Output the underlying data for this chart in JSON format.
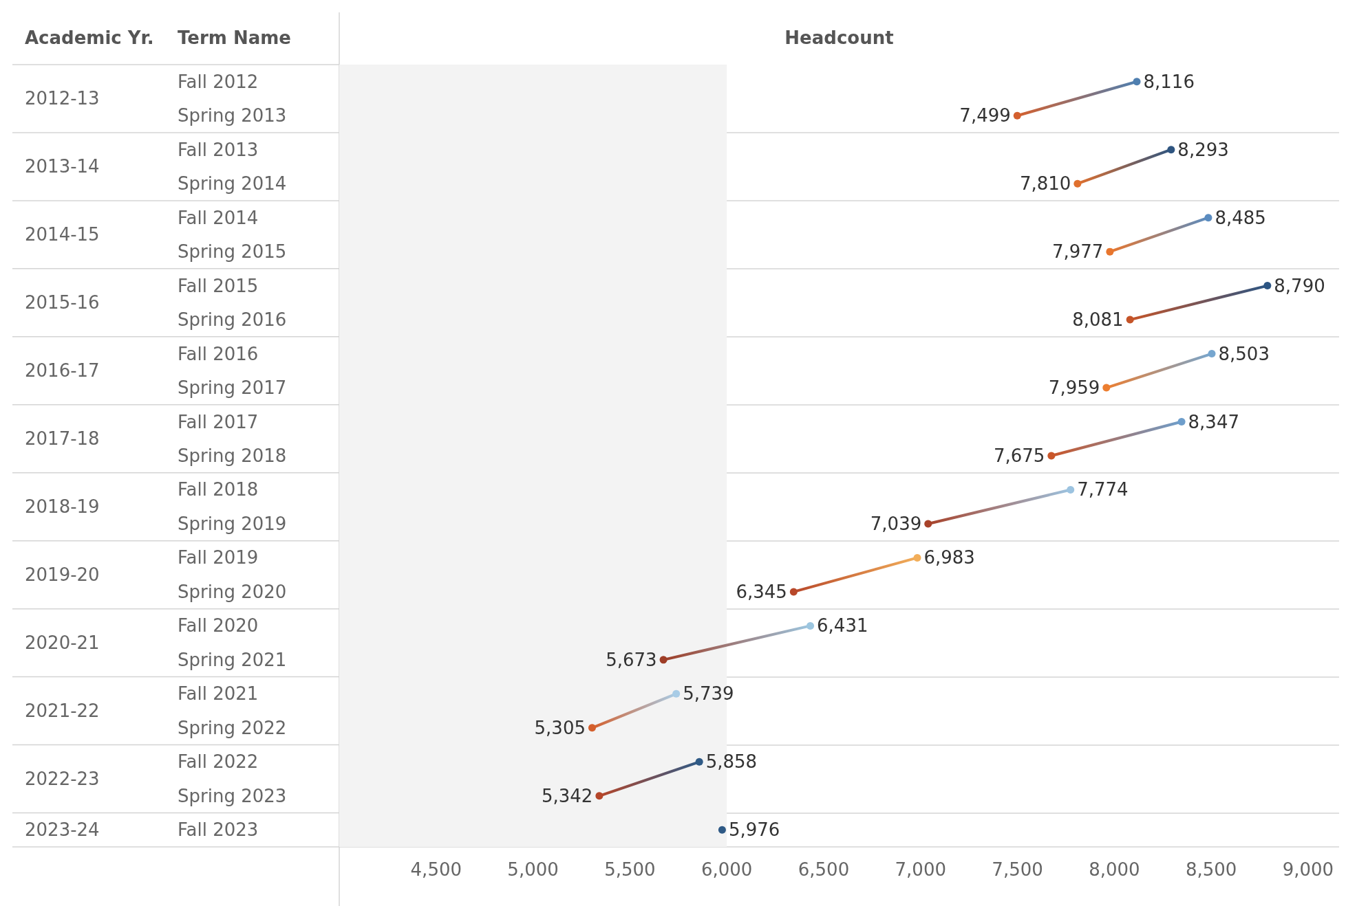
{
  "chart_data": {
    "type": "line",
    "orientation": "horizontal",
    "xlabel": "Headcount",
    "ylabel": "Term Name",
    "legend_title": "Academic Yr.",
    "categories": [
      "Fall 2012",
      "Spring 2013",
      "Fall 2013",
      "Spring 2014",
      "Fall 2014",
      "Spring 2015",
      "Fall 2015",
      "Spring 2016",
      "Fall 2016",
      "Spring 2017",
      "Fall 2017",
      "Spring 2018",
      "Fall 2018",
      "Spring 2019",
      "Fall 2019",
      "Spring 2020",
      "Fall 2020",
      "Spring 2021",
      "Fall 2021",
      "Spring 2022",
      "Fall 2022",
      "Spring 2023",
      "Fall 2023"
    ],
    "annotations": [
      "2012-13",
      "2013-14",
      "2014-15",
      "2015-16",
      "2016-17",
      "2017-18",
      "2018-19",
      "2019-20",
      "2020-21",
      "2021-22",
      "2022-23",
      "2023-24"
    ],
    "series": [
      {
        "values": [
          8116,
          7499,
          null,
          null,
          null,
          null,
          null,
          null,
          null,
          null,
          null,
          null,
          null,
          null,
          null,
          null,
          null,
          null,
          null,
          null,
          null,
          null,
          null
        ],
        "value_labels": [
          "8,116",
          "7,499",
          null,
          null,
          null,
          null,
          null,
          null,
          null,
          null,
          null,
          null,
          null,
          null,
          null,
          null,
          null,
          null,
          null,
          null,
          null,
          null,
          null
        ],
        "colors": [
          "#4f7fb0",
          "#d4602e",
          null,
          null,
          null,
          null,
          null,
          null,
          null,
          null,
          null,
          null,
          null,
          null,
          null,
          null,
          null,
          null,
          null,
          null,
          null,
          null,
          null
        ]
      },
      {
        "values": [
          null,
          null,
          8293,
          7810,
          null,
          null,
          null,
          null,
          null,
          null,
          null,
          null,
          null,
          null,
          null,
          null,
          null,
          null,
          null,
          null,
          null,
          null,
          null
        ],
        "value_labels": [
          null,
          null,
          "8,293",
          "7,810",
          null,
          null,
          null,
          null,
          null,
          null,
          null,
          null,
          null,
          null,
          null,
          null,
          null,
          null,
          null,
          null,
          null,
          null,
          null
        ],
        "colors": [
          null,
          null,
          "#2f5580",
          "#e0702e",
          null,
          null,
          null,
          null,
          null,
          null,
          null,
          null,
          null,
          null,
          null,
          null,
          null,
          null,
          null,
          null,
          null,
          null,
          null
        ]
      },
      {
        "values": [
          null,
          null,
          null,
          null,
          8485,
          7977,
          null,
          null,
          null,
          null,
          null,
          null,
          null,
          null,
          null,
          null,
          null,
          null,
          null,
          null,
          null,
          null,
          null
        ],
        "value_labels": [
          null,
          null,
          null,
          null,
          "8,485",
          "7,977",
          null,
          null,
          null,
          null,
          null,
          null,
          null,
          null,
          null,
          null,
          null,
          null,
          null,
          null,
          null,
          null,
          null
        ],
        "colors": [
          null,
          null,
          null,
          null,
          "#5a8cc0",
          "#e8762e",
          null,
          null,
          null,
          null,
          null,
          null,
          null,
          null,
          null,
          null,
          null,
          null,
          null,
          null,
          null,
          null,
          null
        ]
      },
      {
        "values": [
          null,
          null,
          null,
          null,
          null,
          null,
          8790,
          8081,
          null,
          null,
          null,
          null,
          null,
          null,
          null,
          null,
          null,
          null,
          null,
          null,
          null,
          null,
          null
        ],
        "value_labels": [
          null,
          null,
          null,
          null,
          null,
          null,
          "8,790",
          "8,081",
          null,
          null,
          null,
          null,
          null,
          null,
          null,
          null,
          null,
          null,
          null,
          null,
          null,
          null,
          null
        ],
        "colors": [
          null,
          null,
          null,
          null,
          null,
          null,
          "#2c5583",
          "#c55428",
          null,
          null,
          null,
          null,
          null,
          null,
          null,
          null,
          null,
          null,
          null,
          null,
          null,
          null,
          null
        ]
      },
      {
        "values": [
          null,
          null,
          null,
          null,
          null,
          null,
          null,
          null,
          8503,
          7959,
          null,
          null,
          null,
          null,
          null,
          null,
          null,
          null,
          null,
          null,
          null,
          null,
          null
        ],
        "value_labels": [
          null,
          null,
          null,
          null,
          null,
          null,
          null,
          null,
          "8,503",
          "7,959",
          null,
          null,
          null,
          null,
          null,
          null,
          null,
          null,
          null,
          null,
          null,
          null,
          null
        ],
        "colors": [
          null,
          null,
          null,
          null,
          null,
          null,
          null,
          null,
          "#76a6cf",
          "#ec7e30",
          null,
          null,
          null,
          null,
          null,
          null,
          null,
          null,
          null,
          null,
          null,
          null,
          null
        ]
      },
      {
        "values": [
          null,
          null,
          null,
          null,
          null,
          null,
          null,
          null,
          null,
          null,
          8347,
          7675,
          null,
          null,
          null,
          null,
          null,
          null,
          null,
          null,
          null,
          null,
          null
        ],
        "value_labels": [
          null,
          null,
          null,
          null,
          null,
          null,
          null,
          null,
          null,
          null,
          "8,347",
          "7,675",
          null,
          null,
          null,
          null,
          null,
          null,
          null,
          null,
          null,
          null,
          null
        ],
        "colors": [
          null,
          null,
          null,
          null,
          null,
          null,
          null,
          null,
          null,
          null,
          "#6e9ecb",
          "#c9562a",
          null,
          null,
          null,
          null,
          null,
          null,
          null,
          null,
          null,
          null,
          null
        ]
      },
      {
        "values": [
          null,
          null,
          null,
          null,
          null,
          null,
          null,
          null,
          null,
          null,
          null,
          null,
          7774,
          7039,
          null,
          null,
          null,
          null,
          null,
          null,
          null,
          null,
          null
        ],
        "value_labels": [
          null,
          null,
          null,
          null,
          null,
          null,
          null,
          null,
          null,
          null,
          null,
          null,
          "7,774",
          "7,039",
          null,
          null,
          null,
          null,
          null,
          null,
          null,
          null,
          null
        ],
        "colors": [
          null,
          null,
          null,
          null,
          null,
          null,
          null,
          null,
          null,
          null,
          null,
          null,
          "#9cc3e0",
          "#a8422a",
          null,
          null,
          null,
          null,
          null,
          null,
          null,
          null,
          null
        ]
      },
      {
        "values": [
          null,
          null,
          null,
          null,
          null,
          null,
          null,
          null,
          null,
          null,
          null,
          null,
          null,
          null,
          6983,
          6345,
          null,
          null,
          null,
          null,
          null,
          null,
          null
        ],
        "value_labels": [
          null,
          null,
          null,
          null,
          null,
          null,
          null,
          null,
          null,
          null,
          null,
          null,
          null,
          null,
          "6,983",
          "6,345",
          null,
          null,
          null,
          null,
          null,
          null,
          null
        ],
        "colors": [
          null,
          null,
          null,
          null,
          null,
          null,
          null,
          null,
          null,
          null,
          null,
          null,
          null,
          null,
          "#f2ae5a",
          "#b8482a",
          null,
          null,
          null,
          null,
          null,
          null,
          null
        ]
      },
      {
        "values": [
          null,
          null,
          null,
          null,
          null,
          null,
          null,
          null,
          null,
          null,
          null,
          null,
          null,
          null,
          null,
          null,
          6431,
          5673,
          null,
          null,
          null,
          null,
          null
        ],
        "value_labels": [
          null,
          null,
          null,
          null,
          null,
          null,
          null,
          null,
          null,
          null,
          null,
          null,
          null,
          null,
          null,
          null,
          "6,431",
          "5,673",
          null,
          null,
          null,
          null,
          null
        ],
        "colors": [
          null,
          null,
          null,
          null,
          null,
          null,
          null,
          null,
          null,
          null,
          null,
          null,
          null,
          null,
          null,
          null,
          "#9cc6e0",
          "#9e3d26",
          null,
          null,
          null,
          null,
          null
        ]
      },
      {
        "values": [
          null,
          null,
          null,
          null,
          null,
          null,
          null,
          null,
          null,
          null,
          null,
          null,
          null,
          null,
          null,
          null,
          null,
          null,
          5739,
          5305,
          null,
          null,
          null
        ],
        "value_labels": [
          null,
          null,
          null,
          null,
          null,
          null,
          null,
          null,
          null,
          null,
          null,
          null,
          null,
          null,
          null,
          null,
          null,
          null,
          "5,739",
          "5,305",
          null,
          null,
          null
        ],
        "colors": [
          null,
          null,
          null,
          null,
          null,
          null,
          null,
          null,
          null,
          null,
          null,
          null,
          null,
          null,
          null,
          null,
          null,
          null,
          "#a8cce6",
          "#d45f2c",
          null,
          null,
          null
        ]
      },
      {
        "values": [
          null,
          null,
          null,
          null,
          null,
          null,
          null,
          null,
          null,
          null,
          null,
          null,
          null,
          null,
          null,
          null,
          null,
          null,
          null,
          null,
          5858,
          5342,
          null
        ],
        "value_labels": [
          null,
          null,
          null,
          null,
          null,
          null,
          null,
          null,
          null,
          null,
          null,
          null,
          null,
          null,
          null,
          null,
          null,
          null,
          null,
          null,
          "5,858",
          "5,342",
          null
        ],
        "colors": [
          null,
          null,
          null,
          null,
          null,
          null,
          null,
          null,
          null,
          null,
          null,
          null,
          null,
          null,
          null,
          null,
          null,
          null,
          null,
          null,
          "#2f5a86",
          "#b5462a",
          null
        ]
      },
      {
        "values": [
          null,
          null,
          null,
          null,
          null,
          null,
          null,
          null,
          null,
          null,
          null,
          null,
          null,
          null,
          null,
          null,
          null,
          null,
          null,
          null,
          null,
          null,
          5976
        ],
        "value_labels": [
          null,
          null,
          null,
          null,
          null,
          null,
          null,
          null,
          null,
          null,
          null,
          null,
          null,
          null,
          null,
          null,
          null,
          null,
          null,
          null,
          null,
          null,
          "5,976"
        ],
        "colors": [
          null,
          null,
          null,
          null,
          null,
          null,
          null,
          null,
          null,
          null,
          null,
          null,
          null,
          null,
          null,
          null,
          null,
          null,
          null,
          null,
          null,
          null,
          "#2f5a86"
        ]
      }
    ],
    "xlim": [
      4000,
      9160
    ],
    "xticks": [
      {
        "value": 4500,
        "label": "4,500"
      },
      {
        "value": 5000,
        "label": "5,000"
      },
      {
        "value": 5500,
        "label": "5,500"
      },
      {
        "value": 6000,
        "label": "6,000"
      },
      {
        "value": 6500,
        "label": "6,500"
      },
      {
        "value": 7000,
        "label": "7,000"
      },
      {
        "value": 7500,
        "label": "7,500"
      },
      {
        "value": 8000,
        "label": "8,000"
      },
      {
        "value": 8500,
        "label": "8,500"
      },
      {
        "value": 9000,
        "label": "9,000"
      }
    ],
    "bands": [
      {
        "axis": "x",
        "from": 4000,
        "to": 6000,
        "color": "#f3f3f3"
      }
    ],
    "marker": "circle",
    "grid": false
  }
}
